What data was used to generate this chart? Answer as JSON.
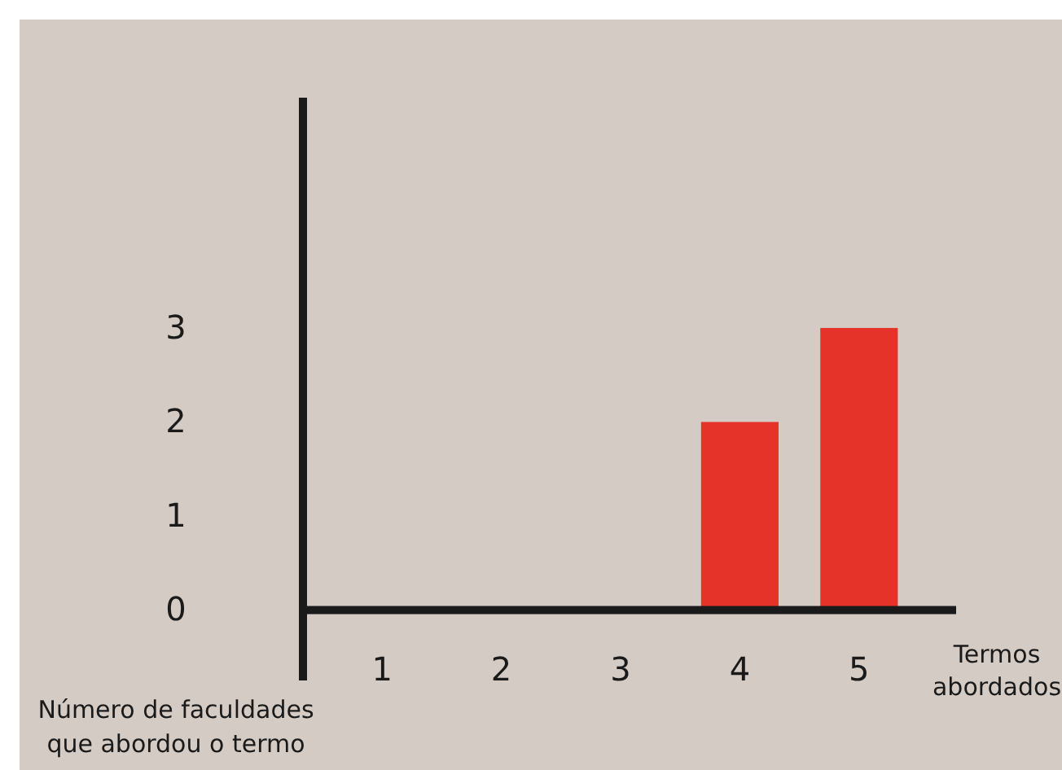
{
  "chart_data": {
    "type": "bar",
    "categories": [
      "1",
      "2",
      "3",
      "4",
      "5"
    ],
    "values": [
      0,
      0,
      0,
      2,
      3
    ],
    "color": "#e5332a",
    "ylim": [
      -0.75,
      5.45
    ],
    "yticks": [
      0,
      1,
      2,
      3
    ],
    "xlabel": "Termos abordados",
    "ylabel": "Número de faculdades que abordou o termo",
    "grid": false
  }
}
